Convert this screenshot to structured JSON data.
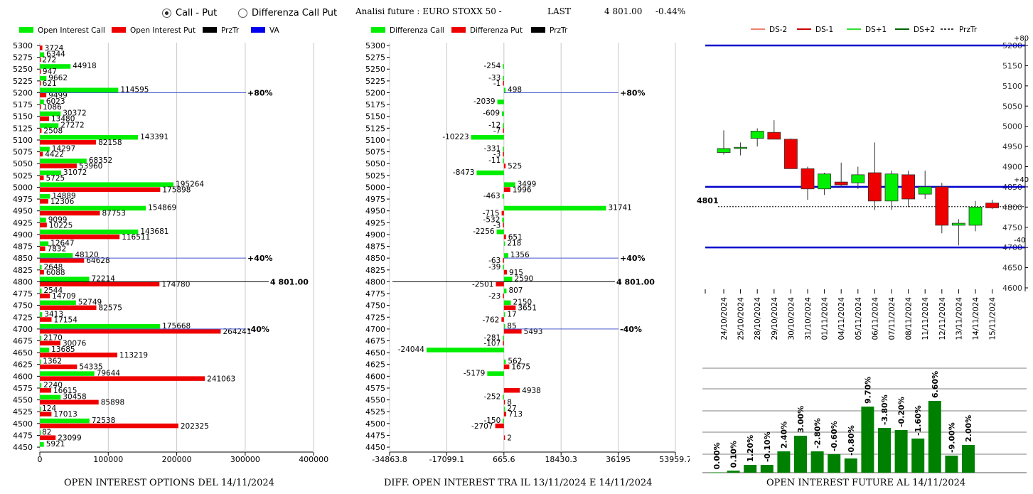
{
  "header": {
    "radio_options": [
      {
        "label": "Call - Put",
        "selected": true
      },
      {
        "label": "Differenza Call Put",
        "selected": false
      }
    ],
    "analysis_title": "Analisi future : EURO STOXX 50 -",
    "last_label": "LAST",
    "last_value": "4 801.00",
    "last_change": "-0.44%"
  },
  "colors": {
    "call": "#00ee00",
    "put": "#ee0000",
    "pivot": "#000000",
    "va": "#0000ee",
    "level": "#0000cc",
    "dark_green": "#008000",
    "ds_minus2": "#f08070",
    "ds_minus1": "#cc0000",
    "ds_plus1": "#33dd33",
    "ds_plus2": "#006400"
  },
  "chart_data": [
    {
      "type": "bar",
      "orientation": "horizontal",
      "legend": [
        "Open Interest Call",
        "Open Interest Put",
        "PrzTr",
        "VA"
      ],
      "categories": [
        "5300",
        "5275",
        "5250",
        "5225",
        "5200",
        "5175",
        "5150",
        "5125",
        "5100",
        "5075",
        "5050",
        "5025",
        "5000",
        "4975",
        "4950",
        "4925",
        "4900",
        "4875",
        "4850",
        "4825",
        "4800",
        "4775",
        "4750",
        "4725",
        "4700",
        "4675",
        "4650",
        "4625",
        "4600",
        "4575",
        "4550",
        "4525",
        "4500",
        "4475",
        "4450"
      ],
      "series": [
        {
          "name": "Open Interest Call",
          "values": [
            null,
            6344,
            44918,
            9662,
            114595,
            6023,
            30372,
            27272,
            143391,
            14297,
            68352,
            31072,
            195264,
            14889,
            154869,
            9099,
            143681,
            12647,
            48120,
            2648,
            72214,
            2544,
            52749,
            3413,
            175668,
            2170,
            13685,
            1362,
            79644,
            2240,
            30458,
            124,
            72538,
            82,
            5921
          ]
        },
        {
          "name": "Open Interest Put",
          "values": [
            3724,
            272,
            947,
            621,
            9499,
            1086,
            13480,
            2508,
            82158,
            4422,
            53960,
            5725,
            175898,
            12306,
            87753,
            10225,
            116511,
            7832,
            64628,
            6088,
            174780,
            14709,
            82575,
            17154,
            264241,
            30076,
            113219,
            54335,
            241063,
            16615,
            85898,
            17013,
            202325,
            23099,
            null
          ]
        }
      ],
      "xticks": [
        "0",
        "100000",
        "200000",
        "300000",
        "400000"
      ],
      "xlim": [
        0,
        400000
      ],
      "annotations": [
        {
          "strike": "5200",
          "label": "+80%"
        },
        {
          "strike": "4850",
          "label": "+40%"
        },
        {
          "strike": "4800",
          "label": "4 801.00"
        },
        {
          "strike": "4700",
          "label": "-40%"
        }
      ],
      "footer": "OPEN INTEREST OPTIONS DEL 14/11/2024"
    },
    {
      "type": "bar",
      "orientation": "horizontal",
      "legend": [
        "Differenza Call",
        "Differenza Put",
        "PrzTr"
      ],
      "categories": [
        "5300",
        "5275",
        "5250",
        "5225",
        "5200",
        "5175",
        "5150",
        "5125",
        "5100",
        "5075",
        "5050",
        "5025",
        "5000",
        "4975",
        "4950",
        "4925",
        "4900",
        "4875",
        "4850",
        "4825",
        "4800",
        "4775",
        "4750",
        "4725",
        "4700",
        "4675",
        "4650",
        "4625",
        "4600",
        "4575",
        "4550",
        "4525",
        "4500",
        "4475",
        "4450"
      ],
      "series": [
        {
          "name": "Differenza Call",
          "values": [
            null,
            null,
            -254,
            -33,
            498,
            -2039,
            -609,
            -12,
            -10223,
            -331,
            -11,
            -8473,
            3499,
            -463,
            31741,
            -532,
            -2256,
            218,
            1356,
            -39,
            2590,
            807,
            2150,
            17,
            85,
            -281,
            -24044,
            562,
            -5179,
            null,
            -252,
            27,
            -150,
            null,
            null
          ]
        },
        {
          "name": "Differenza Put",
          "values": [
            null,
            null,
            null,
            -1,
            null,
            null,
            null,
            -7,
            null,
            -3,
            525,
            null,
            1996,
            null,
            -715,
            -3,
            651,
            null,
            -63,
            915,
            -2501,
            -23,
            3651,
            -762,
            5493,
            -107,
            null,
            1675,
            null,
            4938,
            8,
            713,
            -2707,
            2,
            null
          ]
        }
      ],
      "xticks": [
        "-34863.8",
        "-17099.1",
        "665.6",
        "18430.3",
        "36195",
        "53959.7"
      ],
      "xlim": [
        -34863.8,
        53959.7
      ],
      "annotations": [
        {
          "strike": "5200",
          "label": "+80%"
        },
        {
          "strike": "4850",
          "label": "+40%"
        },
        {
          "strike": "4800",
          "label": "4 801.00"
        },
        {
          "strike": "4700",
          "label": "-40%"
        }
      ],
      "footer": "DIFF. OPEN INTEREST TRA IL 13/11/2024 E 14/11/2024"
    },
    {
      "type": "candlestick",
      "legend": [
        "DS-2",
        "DS-1",
        "DS+1",
        "DS+2",
        "PrzTr"
      ],
      "dates": [
        "24/10/2024",
        "25/10/2024",
        "28/10/2024",
        "29/10/2024",
        "30/10/2024",
        "31/10/2024",
        "01/11/2024",
        "04/11/2024",
        "05/11/2024",
        "06/11/2024",
        "07/11/2024",
        "08/11/2024",
        "11/11/2024",
        "12/11/2024",
        "13/11/2024",
        "14/11/2024",
        "15/11/2024"
      ],
      "ohlc": [
        [
          4935,
          4990,
          4930,
          4945
        ],
        [
          4945,
          4960,
          4928,
          4948
        ],
        [
          4970,
          4995,
          4950,
          4988
        ],
        [
          4985,
          5015,
          4968,
          4968
        ],
        [
          4968,
          4970,
          4895,
          4895
        ],
        [
          4895,
          4900,
          4818,
          4845
        ],
        [
          4845,
          4885,
          4830,
          4882
        ],
        [
          4862,
          4910,
          4848,
          4855
        ],
        [
          4860,
          4900,
          4845,
          4880
        ],
        [
          4885,
          4960,
          4793,
          4815
        ],
        [
          4815,
          4890,
          4793,
          4882
        ],
        [
          4880,
          4890,
          4800,
          4820
        ],
        [
          4832,
          4890,
          4820,
          4850
        ],
        [
          4850,
          4860,
          4735,
          4755
        ],
        [
          4755,
          4770,
          4705,
          4760
        ],
        [
          4755,
          4815,
          4740,
          4800
        ],
        [
          4810,
          4818,
          4795,
          4798
        ]
      ],
      "yticks": [
        "5200",
        "5150",
        "5100",
        "5050",
        "5000",
        "4950",
        "4900",
        "4850",
        "4800",
        "4750",
        "4700",
        "4650",
        "4600"
      ],
      "ylim": [
        4600,
        5200
      ],
      "levels": [
        {
          "value": 5200,
          "label": "+80"
        },
        {
          "value": 4850,
          "label": "+40"
        },
        {
          "value": 4700,
          "label": "-40"
        }
      ],
      "last_label": "4801",
      "last_value": 4801
    },
    {
      "type": "bar",
      "categories": [
        "24/10/2024",
        "25/10/2024",
        "28/10/2024",
        "29/10/2024",
        "30/10/2024",
        "31/10/2024",
        "01/11/2024",
        "04/11/2024",
        "05/11/2024",
        "06/11/2024",
        "07/11/2024",
        "08/11/2024",
        "11/11/2024",
        "12/11/2024",
        "13/11/2024",
        "14/11/2024"
      ],
      "labels": [
        "0.00%",
        "0.10%",
        "1.20%",
        "-0.10%",
        "2.40%",
        "3.00%",
        "-2.80%",
        "-0.60%",
        "-0.80%",
        "9.70%",
        "-3.80%",
        "-0.20%",
        "-1.60%",
        "6.60%",
        "-9.00%",
        "2.00%"
      ],
      "heights": [
        0.5,
        2.8,
        11,
        11,
        30,
        52,
        30,
        26,
        20,
        93,
        63,
        60,
        48,
        101,
        24,
        39
      ],
      "footer": "OPEN INTEREST FUTURE AL 14/11/2024"
    }
  ]
}
